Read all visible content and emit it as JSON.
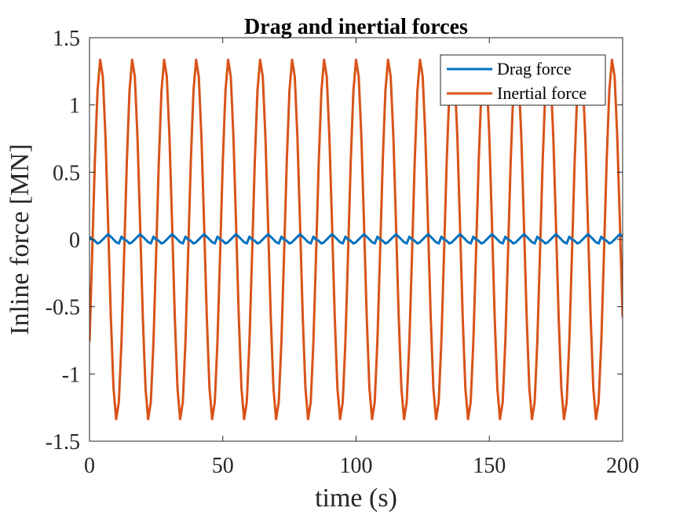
{
  "chart_data": {
    "type": "line",
    "title": "Drag and inertial forces",
    "xlabel": "time (s)",
    "ylabel": "Inline force [MN]",
    "xlim": [
      0,
      200
    ],
    "ylim": [
      -1.5,
      1.5
    ],
    "xticks": [
      0,
      50,
      100,
      150,
      200
    ],
    "xtick_labels": [
      "0",
      "50",
      "100",
      "150",
      "200"
    ],
    "yticks": [
      -1.5,
      -1,
      -0.5,
      0,
      0.5,
      1,
      1.5
    ],
    "ytick_labels": [
      "-1.5",
      "-1",
      "-0.5",
      "0",
      "0.5",
      "1",
      "1.5"
    ],
    "grid": false,
    "legend_position": "top-right",
    "period": 12,
    "series": [
      {
        "name": "Drag force",
        "color": "#0072BD",
        "amplitude": 0.04,
        "description": "periodic, period 12 s, peaks ~0.04 MN",
        "x": [
          0,
          1,
          2,
          3,
          4,
          5,
          6,
          7,
          8,
          9,
          10,
          11,
          12
        ],
        "values": [
          0.02,
          0.0,
          -0.01,
          -0.03,
          -0.02,
          0.0,
          0.02,
          0.04,
          0.02,
          0.0,
          -0.02,
          -0.03,
          0.0
        ]
      },
      {
        "name": "Inertial force",
        "color": "#D95319",
        "amplitude": 1.34,
        "description": "sinusoid, period 12 s, amplitude ~1.34 MN, starts at -0.76 MN",
        "x": [
          0,
          3,
          9,
          15,
          21,
          200
        ],
        "values": [
          -0.76,
          -1.34,
          1.34,
          -1.34,
          1.34,
          1.08
        ]
      }
    ]
  }
}
